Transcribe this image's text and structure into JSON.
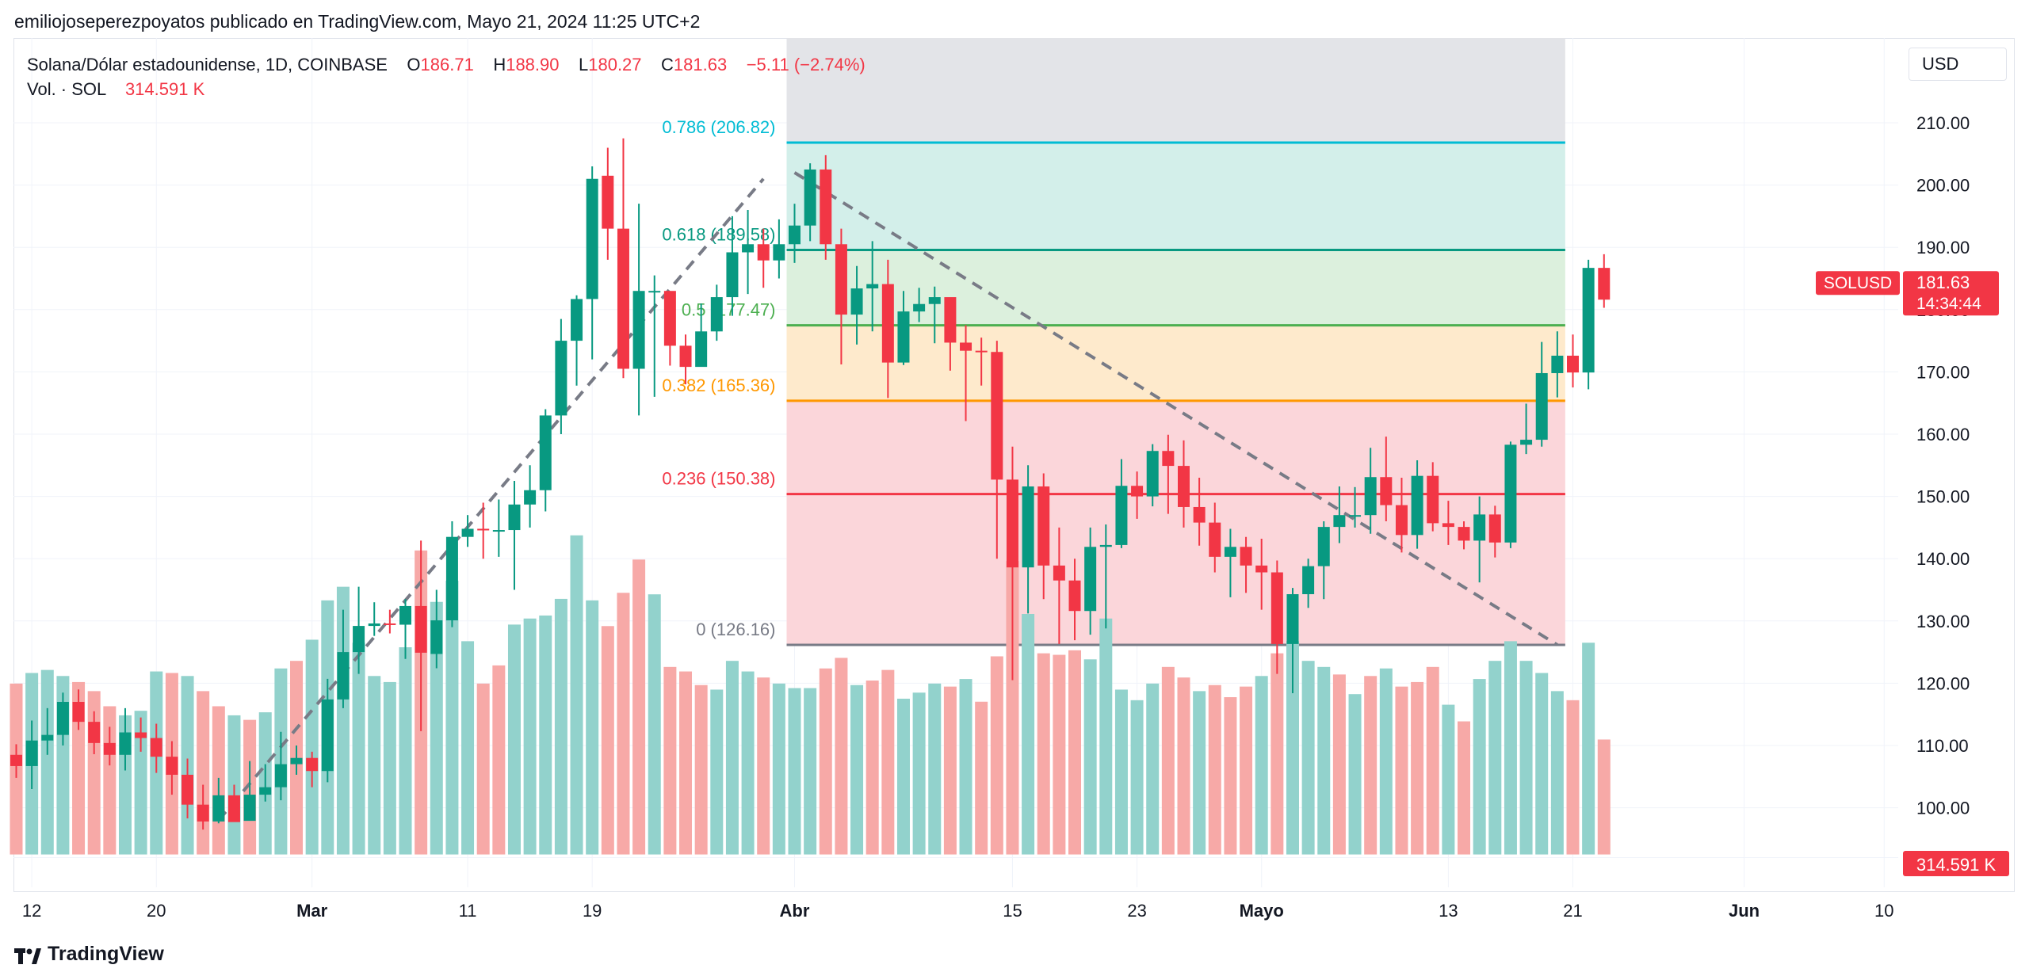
{
  "header": {
    "publisher": "emiliojoseperezpoyatos publicado en TradingView.com, Mayo 21, 2024 11:25 UTC+2"
  },
  "legend": {
    "symbol": "Solana/Dólar estadounidense, 1D, COINBASE",
    "o_label": "O",
    "o_value": "186.71",
    "h_label": "H",
    "h_value": "188.90",
    "l_label": "L",
    "l_value": "180.27",
    "c_label": "C",
    "c_value": "181.63",
    "change": "−5.11 (−2.74%)",
    "vol_label": "Vol. · SOL",
    "vol_value": "314.591 K"
  },
  "currency_button": "USD",
  "badges": {
    "symbol": "SOLUSD",
    "price": "181.63",
    "countdown": "14:34:44",
    "volume": "314.591 K"
  },
  "footer": {
    "brand": "TradingView"
  },
  "colors": {
    "up": "#089981",
    "down": "#f23645",
    "vol_up": "#92d2cc",
    "vol_down": "#f7a9a7",
    "fib_0786": "#00bcd4",
    "fib_0618": "#089981",
    "fib_05": "#4caf50",
    "fib_0382": "#ff9800",
    "fib_0236": "#f23645",
    "fib_0": "#787b86"
  },
  "chart_data": {
    "type": "candlestick",
    "y_ticks": [
      "210.00",
      "200.00",
      "190.00",
      "180.00",
      "170.00",
      "160.00",
      "150.00",
      "140.00",
      "130.00",
      "120.00",
      "110.00",
      "100.00"
    ],
    "y_tick_values": [
      210,
      200,
      190,
      180,
      170,
      160,
      150,
      140,
      130,
      120,
      110,
      100
    ],
    "x_ticks": [
      {
        "label": "12",
        "date": "2024-02-12",
        "bold": false
      },
      {
        "label": "20",
        "date": "2024-02-20",
        "bold": false
      },
      {
        "label": "Mar",
        "date": "2024-03-01",
        "bold": true
      },
      {
        "label": "11",
        "date": "2024-03-11",
        "bold": false
      },
      {
        "label": "19",
        "date": "2024-03-19",
        "bold": false
      },
      {
        "label": "Abr",
        "date": "2024-04-01",
        "bold": true
      },
      {
        "label": "15",
        "date": "2024-04-15",
        "bold": false
      },
      {
        "label": "23",
        "date": "2024-04-23",
        "bold": false
      },
      {
        "label": "Mayo",
        "date": "2024-05-01",
        "bold": true
      },
      {
        "label": "13",
        "date": "2024-05-13",
        "bold": false
      },
      {
        "label": "21",
        "date": "2024-05-21",
        "bold": false
      },
      {
        "label": "Jun",
        "date": "2024-06-01",
        "bold": true
      },
      {
        "label": "10",
        "date": "2024-06-10",
        "bold": false
      }
    ],
    "start_date": "2024-02-11",
    "candles": [
      [
        108.5,
        106.7,
        110.2,
        104.8
      ],
      [
        106.7,
        110.8,
        114,
        103
      ],
      [
        110.8,
        111.7,
        116,
        108.5
      ],
      [
        111.7,
        117,
        118.5,
        110
      ],
      [
        117,
        113.8,
        119,
        112.5
      ],
      [
        113.8,
        110.4,
        115.5,
        108.6
      ],
      [
        110.4,
        108.5,
        113,
        106.8
      ],
      [
        108.5,
        112.1,
        116,
        106
      ],
      [
        112.1,
        111.2,
        114.5,
        109
      ],
      [
        111.2,
        108.2,
        113.5,
        105.6
      ],
      [
        108.2,
        105.3,
        110.7,
        102.1
      ],
      [
        105.3,
        100.5,
        107.9,
        98.3
      ],
      [
        100.5,
        97.8,
        103.7,
        96.5
      ],
      [
        97.8,
        102,
        104.8,
        97.5
      ],
      [
        102,
        97.7,
        103.7,
        97.8
      ],
      [
        97.9,
        102.1,
        107.5,
        98.6
      ],
      [
        102.1,
        103.3,
        107,
        101
      ],
      [
        103.3,
        107,
        112.2,
        101.2
      ],
      [
        107,
        108,
        110,
        105.3
      ],
      [
        108,
        105.9,
        109,
        103.3
      ],
      [
        105.9,
        117.4,
        120.7,
        104.1
      ],
      [
        117.4,
        125,
        131.8,
        116
      ],
      [
        125,
        129.2,
        135.5,
        121.5
      ],
      [
        129.2,
        129.6,
        133,
        127.6
      ],
      [
        129.6,
        129.4,
        131.8,
        128
      ],
      [
        129.4,
        132.4,
        133.5,
        123.9
      ],
      [
        132.4,
        124.9,
        142.9,
        112.3
      ],
      [
        124.7,
        130.1,
        135,
        122.4
      ],
      [
        130.1,
        143.5,
        146,
        129
      ],
      [
        143.5,
        144.8,
        147,
        141.9
      ],
      [
        144.8,
        144.6,
        149,
        140
      ],
      [
        144.5,
        144.6,
        149.5,
        140.3
      ],
      [
        144.6,
        148.7,
        152.5,
        135
      ],
      [
        148.7,
        151,
        155,
        145
      ],
      [
        151,
        163,
        164,
        147.6
      ],
      [
        163,
        175,
        178.5,
        160
      ],
      [
        175,
        181.7,
        182.3,
        167.8
      ],
      [
        181.7,
        201,
        203,
        172
      ],
      [
        201.5,
        193,
        206,
        188
      ],
      [
        193,
        170.5,
        207.5,
        169
      ],
      [
        170.5,
        183,
        197,
        163
      ],
      [
        183,
        183,
        185.5,
        166
      ],
      [
        183,
        174.2,
        180.5,
        171
      ],
      [
        174.2,
        170.8,
        176,
        168
      ],
      [
        170.8,
        176.5,
        181,
        171.4
      ],
      [
        176.5,
        182,
        184,
        175
      ],
      [
        182,
        189.2,
        195,
        179
      ],
      [
        189.2,
        190.5,
        196,
        182.5
      ],
      [
        190.5,
        187.9,
        193,
        183.5
      ],
      [
        187.9,
        190.5,
        194.5,
        185
      ],
      [
        190.5,
        193.5,
        197,
        187.5
      ],
      [
        193.5,
        202.5,
        203.5,
        191
      ],
      [
        202.5,
        190.5,
        204.8,
        188
      ],
      [
        190.5,
        179.2,
        193,
        171.2
      ],
      [
        179.2,
        183.4,
        187,
        174.4
      ],
      [
        183.4,
        184.1,
        191,
        176.5
      ],
      [
        184.1,
        171.5,
        188,
        165.8
      ],
      [
        171.5,
        179.7,
        183,
        171.1
      ],
      [
        179.7,
        180.9,
        183.5,
        178
      ],
      [
        180.9,
        182,
        183.7,
        174.6
      ],
      [
        182,
        174.7,
        181.1,
        170.2
      ],
      [
        174.7,
        173.4,
        177.5,
        162.1
      ],
      [
        173.4,
        173.2,
        175.5,
        167.8
      ],
      [
        173.2,
        152.7,
        175,
        140
      ],
      [
        152.7,
        138.6,
        158,
        120.5
      ],
      [
        138.6,
        151.6,
        155,
        131.2
      ],
      [
        151.6,
        138.9,
        153.7,
        133.5
      ],
      [
        138.9,
        136.5,
        145,
        126.3
      ],
      [
        136.5,
        131.6,
        140,
        126.9
      ],
      [
        131.6,
        141.9,
        145,
        127.8
      ],
      [
        141.9,
        142.2,
        145.5,
        128.8
      ],
      [
        142.2,
        151.7,
        156,
        141.7
      ],
      [
        151.7,
        150,
        154,
        146.4
      ],
      [
        150,
        157.3,
        158.4,
        148.4
      ],
      [
        157.3,
        154.9,
        159.9,
        147.2
      ],
      [
        154.9,
        148.3,
        159,
        145
      ],
      [
        148.3,
        145.8,
        153,
        142.1
      ],
      [
        145.8,
        140.3,
        149,
        137.8
      ],
      [
        140.3,
        141.9,
        144.8,
        133.8
      ],
      [
        141.9,
        138.9,
        143.5,
        134.5
      ],
      [
        138.9,
        137.8,
        143.2,
        131.8
      ],
      [
        137.8,
        126.3,
        139.7,
        121.5
      ],
      [
        126.3,
        134.3,
        135.3,
        118.4
      ],
      [
        134.3,
        138.8,
        140,
        132.1
      ],
      [
        138.8,
        145.1,
        146,
        133.5
      ],
      [
        145.1,
        147,
        151.6,
        142.5
      ],
      [
        147,
        147,
        151.5,
        145
      ],
      [
        147,
        153.1,
        157.8,
        144
      ],
      [
        153.1,
        148.6,
        159.6,
        146
      ],
      [
        148.6,
        143.8,
        153,
        141
      ],
      [
        143.8,
        153.3,
        155.8,
        141.6
      ],
      [
        153.3,
        145.7,
        155.5,
        144.4
      ],
      [
        145.7,
        145.1,
        149.3,
        142.2
      ],
      [
        145.1,
        142.9,
        146,
        141.5
      ],
      [
        142.9,
        147.1,
        150,
        136.2
      ],
      [
        147.1,
        142.6,
        148.5,
        140.2
      ],
      [
        142.6,
        158.3,
        158.8,
        141.7
      ],
      [
        158.3,
        159.1,
        164.9,
        156.8
      ],
      [
        159.1,
        169.8,
        174.8,
        158
      ],
      [
        169.8,
        172.6,
        176.5,
        165.9
      ],
      [
        172.6,
        169.9,
        176,
        167.5
      ],
      [
        169.9,
        186.7,
        188,
        167.2
      ],
      [
        186.7,
        181.6,
        188.9,
        180.3
      ]
    ],
    "volumes": [
      [
        11.3,
        0
      ],
      [
        12,
        1
      ],
      [
        12.2,
        1
      ],
      [
        11.8,
        1
      ],
      [
        11.4,
        0
      ],
      [
        10.8,
        0
      ],
      [
        9.8,
        0
      ],
      [
        9.2,
        1
      ],
      [
        9.5,
        1
      ],
      [
        12.1,
        1
      ],
      [
        12,
        0
      ],
      [
        11.8,
        1
      ],
      [
        10.8,
        0
      ],
      [
        9.8,
        0
      ],
      [
        9.2,
        1
      ],
      [
        8.9,
        0
      ],
      [
        9.4,
        1
      ],
      [
        12.3,
        1
      ],
      [
        12.8,
        0
      ],
      [
        14.2,
        1
      ],
      [
        16.8,
        1
      ],
      [
        17.7,
        1
      ],
      [
        14,
        1
      ],
      [
        11.8,
        1
      ],
      [
        11.4,
        1
      ],
      [
        13.7,
        1
      ],
      [
        20.1,
        0
      ],
      [
        16.7,
        1
      ],
      [
        18.1,
        1
      ],
      [
        14.1,
        1
      ],
      [
        11.3,
        0
      ],
      [
        12.5,
        0
      ],
      [
        15.2,
        1
      ],
      [
        15.6,
        1
      ],
      [
        15.8,
        1
      ],
      [
        16.9,
        1
      ],
      [
        21.1,
        1
      ],
      [
        16.8,
        1
      ],
      [
        15.1,
        0
      ],
      [
        17.3,
        0
      ],
      [
        19.5,
        0
      ],
      [
        17.2,
        1
      ],
      [
        12.4,
        0
      ],
      [
        12.1,
        0
      ],
      [
        11.2,
        0
      ],
      [
        10.9,
        1
      ],
      [
        12.8,
        1
      ],
      [
        12.1,
        1
      ],
      [
        11.7,
        0
      ],
      [
        11.3,
        1
      ],
      [
        11,
        1
      ],
      [
        11,
        1
      ],
      [
        12.3,
        0
      ],
      [
        13,
        0
      ],
      [
        11.2,
        1
      ],
      [
        11.5,
        0
      ],
      [
        12.2,
        0
      ],
      [
        10.3,
        1
      ],
      [
        10.7,
        1
      ],
      [
        11.3,
        1
      ],
      [
        11.1,
        0
      ],
      [
        11.6,
        1
      ],
      [
        10.1,
        0
      ],
      [
        13.1,
        0
      ],
      [
        19.4,
        0
      ],
      [
        15.9,
        1
      ],
      [
        13.3,
        0
      ],
      [
        13.2,
        0
      ],
      [
        13.5,
        0
      ],
      [
        12.9,
        1
      ],
      [
        15.6,
        1
      ],
      [
        10.9,
        1
      ],
      [
        10.2,
        1
      ],
      [
        11.3,
        1
      ],
      [
        12.4,
        0
      ],
      [
        11.7,
        0
      ],
      [
        10.8,
        1
      ],
      [
        11.2,
        0
      ],
      [
        10.4,
        0
      ],
      [
        11.1,
        0
      ],
      [
        11.8,
        1
      ],
      [
        13.3,
        0
      ],
      [
        14.1,
        1
      ],
      [
        12.8,
        1
      ],
      [
        12.4,
        1
      ],
      [
        11.9,
        0
      ],
      [
        10.6,
        1
      ],
      [
        11.8,
        0
      ],
      [
        12.3,
        1
      ],
      [
        11.1,
        0
      ],
      [
        11.4,
        0
      ],
      [
        12.4,
        0
      ],
      [
        9.9,
        1
      ],
      [
        8.8,
        0
      ],
      [
        11.6,
        1
      ],
      [
        12.8,
        1
      ],
      [
        14.1,
        1
      ],
      [
        12.8,
        1
      ],
      [
        12,
        1
      ],
      [
        10.8,
        1
      ],
      [
        10.2,
        0
      ],
      [
        14,
        1
      ],
      [
        7.6,
        0
      ]
    ],
    "volume_max": 22,
    "fib": {
      "levels": [
        {
          "label": "0.786 (206.82)",
          "value": 206.82,
          "color": "#00bcd4",
          "fill": "#d0f2f7"
        },
        {
          "label": "0.618 (189.58)",
          "value": 189.58,
          "color": "#089981",
          "fill": "#d3efea"
        },
        {
          "label": "0.5 (177.47)",
          "value": 177.47,
          "color": "#4caf50",
          "fill": "#dcf0dd"
        },
        {
          "label": "0.382 (165.36)",
          "value": 165.36,
          "color": "#ff9800",
          "fill": "#feeacc"
        },
        {
          "label": "0.236 (150.38)",
          "value": 150.38,
          "color": "#f23645",
          "fill": "#fbd6da"
        },
        {
          "label": "0 (126.16)",
          "value": 126.16,
          "color": "#787b86",
          "fill": "#fbd6da"
        }
      ],
      "top_fill": "#e3e4e8",
      "start_date": "2024-04-01",
      "end_date": "2024-05-20"
    },
    "trend_lines": [
      {
        "from_date": "2024-02-24",
        "from_value": 98,
        "to_date": "2024-03-30",
        "to_value": 201
      },
      {
        "from_date": "2024-04-01",
        "from_value": 202,
        "to_date": "2024-05-20",
        "to_value": 126.16
      }
    ]
  }
}
